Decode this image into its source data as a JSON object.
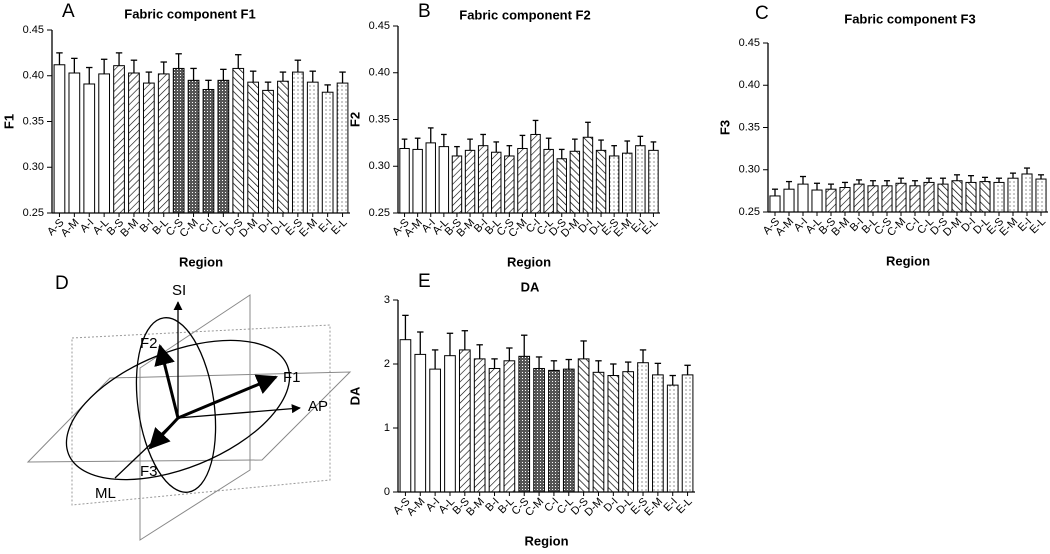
{
  "chart_data": [
    {
      "type": "bar",
      "panel": "A",
      "title": "Fabric component F1",
      "y_label": "F1",
      "x_label": "Region",
      "categories": [
        "A-S",
        "A-M",
        "A-I",
        "A-L",
        "B-S",
        "B-M",
        "B-I",
        "B-L",
        "C-S",
        "C-M",
        "C-I",
        "C-L",
        "D-S",
        "D-M",
        "D-I",
        "D-L",
        "E-S",
        "E-M",
        "E-I",
        "E-L"
      ],
      "values": [
        0.412,
        0.403,
        0.391,
        0.402,
        0.411,
        0.403,
        0.392,
        0.402,
        0.408,
        0.395,
        0.385,
        0.395,
        0.408,
        0.393,
        0.384,
        0.394,
        0.404,
        0.393,
        0.382,
        0.392
      ],
      "errors": [
        0.013,
        0.016,
        0.018,
        0.016,
        0.014,
        0.014,
        0.012,
        0.013,
        0.016,
        0.013,
        0.01,
        0.012,
        0.015,
        0.012,
        0.009,
        0.01,
        0.013,
        0.012,
        0.008,
        0.012
      ],
      "fills": [
        "open",
        "open",
        "open",
        "open",
        "hatch",
        "hatch",
        "hatch",
        "hatch",
        "dense",
        "dense",
        "dense",
        "dense",
        "backhatch",
        "backhatch",
        "backhatch",
        "backhatch",
        "dots",
        "dots",
        "dots",
        "dots"
      ],
      "ylim": [
        0.25,
        0.45
      ],
      "yticks": [
        0.25,
        {
          "value": 0.3,
          "label": "0.30"
        },
        0.35,
        {
          "value": 0.4,
          "label": "0.40"
        },
        0.45
      ]
    },
    {
      "type": "bar",
      "panel": "B",
      "title": "Fabric component F2",
      "y_label": "F2",
      "x_label": "Region",
      "categories": [
        "A-S",
        "A-M",
        "A-I",
        "A-L",
        "B-S",
        "B-M",
        "B-I",
        "B-L",
        "C-S",
        "C-M",
        "C-I",
        "C-L",
        "D-S",
        "D-M",
        "D-I",
        "D-L",
        "E-S",
        "E-M",
        "E-I",
        "E-L"
      ],
      "values": [
        0.319,
        0.318,
        0.325,
        0.321,
        0.311,
        0.317,
        0.322,
        0.315,
        0.311,
        0.319,
        0.334,
        0.318,
        0.308,
        0.316,
        0.331,
        0.317,
        0.311,
        0.314,
        0.322,
        0.317
      ],
      "errors": [
        0.01,
        0.012,
        0.016,
        0.013,
        0.01,
        0.012,
        0.012,
        0.011,
        0.011,
        0.014,
        0.015,
        0.012,
        0.01,
        0.013,
        0.016,
        0.011,
        0.011,
        0.013,
        0.01,
        0.009
      ],
      "fills": [
        "open",
        "open",
        "open",
        "open",
        "hatch",
        "hatch",
        "hatch",
        "hatch",
        "hatch",
        "hatch",
        "hatch",
        "hatch",
        "backhatch",
        "backhatch",
        "backhatch",
        "backhatch",
        "dots",
        "dots",
        "dots",
        "dots"
      ],
      "ylim": [
        0.25,
        0.45
      ],
      "yticks": [
        0.25,
        {
          "value": 0.3,
          "label": "0.30"
        },
        0.35,
        {
          "value": 0.4,
          "label": "0.40"
        },
        0.45
      ]
    },
    {
      "type": "bar",
      "panel": "C",
      "title": "Fabric component F3",
      "y_label": "F3",
      "x_label": "Region",
      "categories": [
        "A-S",
        "A-M",
        "A-I",
        "A-L",
        "B-S",
        "B-M",
        "B-I",
        "B-L",
        "C-S",
        "C-M",
        "C-I",
        "C-L",
        "D-S",
        "D-M",
        "D-I",
        "D-L",
        "E-S",
        "E-M",
        "E-I",
        "E-L"
      ],
      "values": [
        0.269,
        0.277,
        0.283,
        0.276,
        0.277,
        0.279,
        0.283,
        0.281,
        0.281,
        0.284,
        0.281,
        0.285,
        0.283,
        0.287,
        0.285,
        0.286,
        0.285,
        0.29,
        0.295,
        0.289
      ],
      "errors": [
        0.008,
        0.009,
        0.009,
        0.008,
        0.006,
        0.006,
        0.005,
        0.006,
        0.006,
        0.006,
        0.006,
        0.005,
        0.007,
        0.007,
        0.008,
        0.005,
        0.005,
        0.006,
        0.007,
        0.005
      ],
      "fills": [
        "open",
        "open",
        "open",
        "open",
        "hatch",
        "hatch",
        "hatch",
        "hatch",
        "hatch",
        "hatch",
        "hatch",
        "hatch",
        "backhatch",
        "backhatch",
        "backhatch",
        "backhatch",
        "dots",
        "dots",
        "dots",
        "dots"
      ],
      "ylim": [
        0.25,
        0.45
      ],
      "yticks": [
        0.25,
        {
          "value": 0.3,
          "label": "0.30"
        },
        0.35,
        {
          "value": 0.4,
          "label": "0.40"
        },
        0.45
      ]
    },
    {
      "type": "bar",
      "panel": "E",
      "title": "DA",
      "y_label": "DA",
      "x_label": "Region",
      "categories": [
        "A-S",
        "A-M",
        "A-I",
        "A-L",
        "B-S",
        "B-M",
        "B-I",
        "B-L",
        "C-S",
        "C-M",
        "C-I",
        "C-L",
        "D-S",
        "D-M",
        "D-I",
        "D-L",
        "E-S",
        "E-M",
        "E-I",
        "E-L"
      ],
      "values": [
        2.38,
        2.15,
        1.92,
        2.13,
        2.22,
        2.08,
        1.93,
        2.05,
        2.12,
        1.93,
        1.9,
        1.92,
        2.08,
        1.87,
        1.82,
        1.88,
        2.02,
        1.83,
        1.67,
        1.83
      ],
      "errors": [
        0.38,
        0.35,
        0.3,
        0.35,
        0.3,
        0.22,
        0.15,
        0.2,
        0.33,
        0.18,
        0.15,
        0.15,
        0.28,
        0.18,
        0.18,
        0.15,
        0.2,
        0.18,
        0.15,
        0.15
      ],
      "fills": [
        "open",
        "open",
        "open",
        "open",
        "hatch",
        "hatch",
        "hatch",
        "hatch",
        "dense",
        "dense",
        "dense",
        "dense",
        "backhatch",
        "backhatch",
        "backhatch",
        "backhatch",
        "dots",
        "dots",
        "dots",
        "dots"
      ],
      "ylim": [
        0,
        3
      ],
      "yticks": [
        0,
        1,
        2,
        3
      ]
    }
  ],
  "diagram": {
    "panel": "D",
    "axes": [
      "SI",
      "AP",
      "ML"
    ],
    "vectors": [
      "F1",
      "F2",
      "F3"
    ]
  }
}
